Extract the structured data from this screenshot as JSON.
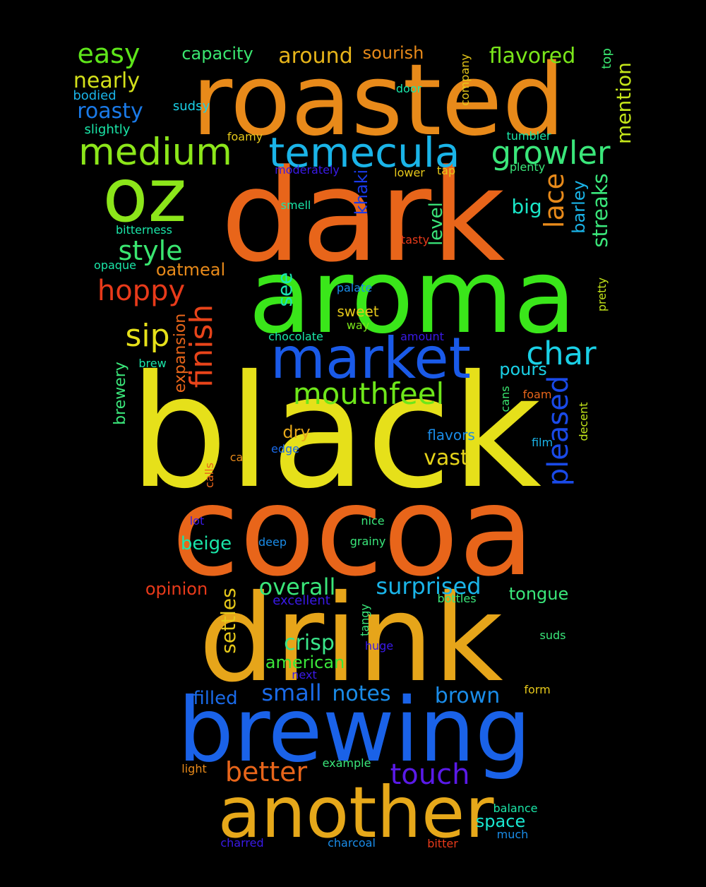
{
  "background": "#000000",
  "words": [
    {
      "text": "black",
      "color": "#e6e01a"
    },
    {
      "text": "cocoa",
      "color": "#e8651a"
    },
    {
      "text": "drink",
      "color": "#e6a51a"
    },
    {
      "text": "dark",
      "color": "#e8651a"
    },
    {
      "text": "aroma",
      "color": "#3ae61a"
    },
    {
      "text": "roasted",
      "color": "#e88a1a"
    },
    {
      "text": "brewing",
      "color": "#1a62e8"
    },
    {
      "text": "another",
      "color": "#e6a81a"
    },
    {
      "text": "oz",
      "color": "#8ce61a"
    },
    {
      "text": "market",
      "color": "#1a5ae8"
    },
    {
      "text": "temecula",
      "color": "#1ab4e8"
    },
    {
      "text": "medium",
      "color": "#8ce61a"
    },
    {
      "text": "growler",
      "color": "#3ae67a"
    },
    {
      "text": "char",
      "color": "#1ad0e6"
    },
    {
      "text": "mouthfeel",
      "color": "#6ee61a"
    },
    {
      "text": "finish",
      "color": "#e8441a"
    },
    {
      "text": "pleased",
      "color": "#1a4ae8"
    },
    {
      "text": "sip",
      "color": "#e6e01a"
    },
    {
      "text": "hoppy",
      "color": "#e83a1a"
    },
    {
      "text": "style",
      "color": "#3ae670"
    },
    {
      "text": "easy",
      "color": "#5ee61a"
    },
    {
      "text": "touch",
      "color": "#5a1ae8"
    },
    {
      "text": "better",
      "color": "#e8651a"
    },
    {
      "text": "surprised",
      "color": "#1ab4e8"
    },
    {
      "text": "overall",
      "color": "#3ae67a"
    },
    {
      "text": "lace",
      "color": "#e88a1a"
    },
    {
      "text": "streaks",
      "color": "#3ae67a"
    },
    {
      "text": "mention",
      "color": "#c4e61a"
    },
    {
      "text": "flavored",
      "color": "#7ae61a"
    },
    {
      "text": "around",
      "color": "#e6b41a"
    },
    {
      "text": "nearly",
      "color": "#d4e01a"
    },
    {
      "text": "roasty",
      "color": "#1a7ae8"
    },
    {
      "text": "small",
      "color": "#1a6ae8"
    },
    {
      "text": "notes",
      "color": "#1a8ce8"
    },
    {
      "text": "brown",
      "color": "#1a8ce8"
    },
    {
      "text": "crisp",
      "color": "#3ae68a"
    },
    {
      "text": "settles",
      "color": "#e6c81a"
    },
    {
      "text": "vast",
      "color": "#e6d41a"
    },
    {
      "text": "see",
      "color": "#1ae6b4"
    },
    {
      "text": "level",
      "color": "#3ae67a"
    },
    {
      "text": "big",
      "color": "#1ae6c8"
    },
    {
      "text": "filled",
      "color": "#1a6ae8"
    },
    {
      "text": "capacity",
      "color": "#3ae670"
    },
    {
      "text": "sourish",
      "color": "#e88a1a"
    },
    {
      "text": "khaki",
      "color": "#1a3ae8"
    },
    {
      "text": "barley",
      "color": "#1ab4e8"
    },
    {
      "text": "beige",
      "color": "#1ae6a8"
    },
    {
      "text": "pours",
      "color": "#1ad0e6"
    },
    {
      "text": "tongue",
      "color": "#3ae67a"
    },
    {
      "text": "american",
      "color": "#3ae63a"
    },
    {
      "text": "oatmeal",
      "color": "#e88a1a"
    },
    {
      "text": "opinion",
      "color": "#e83a1a"
    },
    {
      "text": "expansion",
      "color": "#e8651a"
    },
    {
      "text": "brewery",
      "color": "#3ae67a"
    },
    {
      "text": "space",
      "color": "#1ae6d0"
    },
    {
      "text": "dry",
      "color": "#e6a81a"
    },
    {
      "text": "sweet",
      "color": "#e6c81a"
    },
    {
      "text": "excellent",
      "color": "#3a1ae8"
    },
    {
      "text": "flavors",
      "color": "#1a8ce8"
    },
    {
      "text": "bodied",
      "color": "#1ab4e8"
    },
    {
      "text": "sudsy",
      "color": "#1ad0e6"
    },
    {
      "text": "slightly",
      "color": "#1ae6a8"
    },
    {
      "text": "foamy",
      "color": "#e6c81a"
    },
    {
      "text": "door",
      "color": "#1ae6a8"
    },
    {
      "text": "company",
      "color": "#e6c81a"
    },
    {
      "text": "top",
      "color": "#3ae670"
    },
    {
      "text": "tumbler",
      "color": "#1ae6a8"
    },
    {
      "text": "moderately",
      "color": "#3a1ae8"
    },
    {
      "text": "lower",
      "color": "#e6c81a"
    },
    {
      "text": "tap",
      "color": "#e6c81a"
    },
    {
      "text": "plenty",
      "color": "#3ae67a"
    },
    {
      "text": "smell",
      "color": "#1ae6a8"
    },
    {
      "text": "bitterness",
      "color": "#1ae6a8"
    },
    {
      "text": "tasty",
      "color": "#e83a1a"
    },
    {
      "text": "opaque",
      "color": "#1ae6a8"
    },
    {
      "text": "palate",
      "color": "#1a8ce8"
    },
    {
      "text": "pretty",
      "color": "#c4e61a"
    },
    {
      "text": "way",
      "color": "#7ae61a"
    },
    {
      "text": "chocolate",
      "color": "#1ae6a8"
    },
    {
      "text": "amount",
      "color": "#3a1ae8"
    },
    {
      "text": "brew",
      "color": "#1ae6a8"
    },
    {
      "text": "cans",
      "color": "#3ae670"
    },
    {
      "text": "foam",
      "color": "#e8651a"
    },
    {
      "text": "decent",
      "color": "#c4e61a"
    },
    {
      "text": "film",
      "color": "#1ab4e8"
    },
    {
      "text": "edge",
      "color": "#1a6ae8"
    },
    {
      "text": "ca",
      "color": "#e88a1a"
    },
    {
      "text": "calls",
      "color": "#e8651a"
    },
    {
      "text": "lot",
      "color": "#3a1ae8"
    },
    {
      "text": "deep",
      "color": "#1a8ce8"
    },
    {
      "text": "nice",
      "color": "#3ae67a"
    },
    {
      "text": "grainy",
      "color": "#3ae67a"
    },
    {
      "text": "bottles",
      "color": "#3ae67a"
    },
    {
      "text": "tangy",
      "color": "#3ae67a"
    },
    {
      "text": "huge",
      "color": "#3a1ae8"
    },
    {
      "text": "suds",
      "color": "#3ae67a"
    },
    {
      "text": "next",
      "color": "#3a1ae8"
    },
    {
      "text": "form",
      "color": "#e6c81a"
    },
    {
      "text": "light",
      "color": "#e88a1a"
    },
    {
      "text": "example",
      "color": "#3ae67a"
    },
    {
      "text": "balance",
      "color": "#1ae6a8"
    },
    {
      "text": "much",
      "color": "#1a8ce8"
    },
    {
      "text": "charred",
      "color": "#3a1ae8"
    },
    {
      "text": "charcoal",
      "color": "#1a8ce8"
    },
    {
      "text": "bitter",
      "color": "#e83a1a"
    }
  ]
}
